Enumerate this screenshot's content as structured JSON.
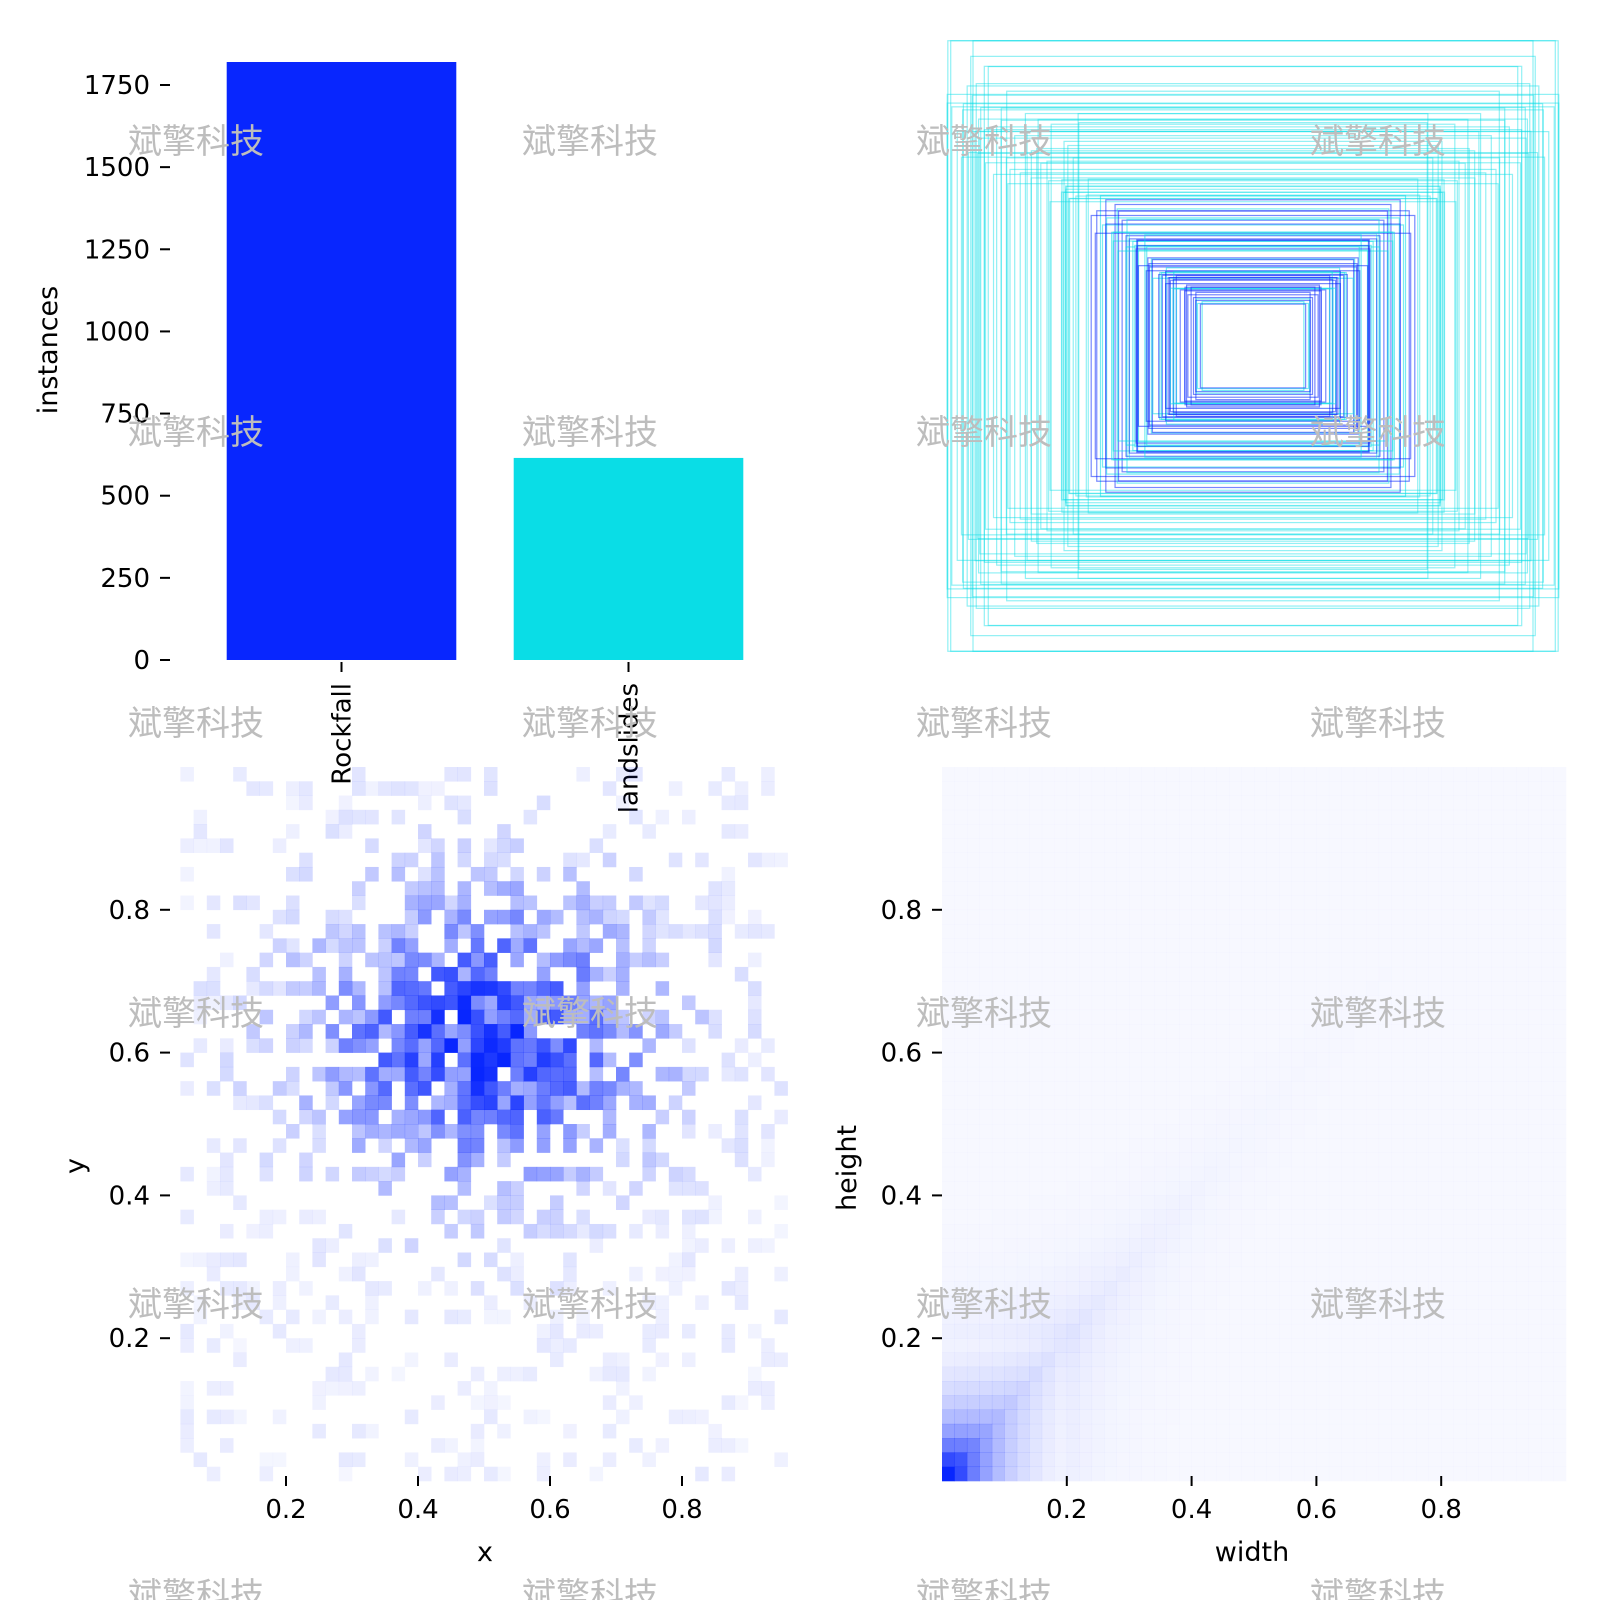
{
  "watermark": "斌擎科技",
  "chart_data": [
    {
      "type": "bar",
      "ylabel": "instances",
      "categories": [
        "Rockfall",
        "landslides"
      ],
      "values": [
        1820,
        615
      ],
      "colors": [
        "#0826fe",
        "#0adde6"
      ],
      "ylim": [
        0,
        1850
      ],
      "yticks": [
        0,
        250,
        500,
        750,
        1000,
        1250,
        1500,
        1750
      ],
      "grid": false
    },
    {
      "type": "scatter",
      "description_kind": "overlaid centered bounding boxes",
      "boxes_wh": [
        [
          0.98,
          0.98
        ],
        [
          0.9,
          0.85
        ],
        [
          0.78,
          0.82
        ],
        [
          0.7,
          0.72
        ],
        [
          0.6,
          0.68
        ],
        [
          0.94,
          0.64
        ],
        [
          0.84,
          0.6
        ],
        [
          0.72,
          0.54
        ],
        [
          0.62,
          0.5
        ],
        [
          0.56,
          0.46
        ],
        [
          0.5,
          0.4
        ],
        [
          0.44,
          0.37
        ],
        [
          0.4,
          0.32
        ],
        [
          0.36,
          0.3
        ],
        [
          0.32,
          0.26
        ],
        [
          0.28,
          0.22
        ],
        [
          0.25,
          0.2
        ],
        [
          0.22,
          0.18
        ],
        [
          0.2,
          0.16
        ],
        [
          0.18,
          0.14
        ],
        [
          0.96,
          0.78
        ],
        [
          0.88,
          0.7
        ],
        [
          0.8,
          0.66
        ],
        [
          0.66,
          0.6
        ],
        [
          0.58,
          0.55
        ],
        [
          0.52,
          0.48
        ],
        [
          0.46,
          0.42
        ],
        [
          0.42,
          0.36
        ],
        [
          0.38,
          0.34
        ],
        [
          0.34,
          0.28
        ],
        [
          0.3,
          0.24
        ],
        [
          0.26,
          0.22
        ]
      ],
      "colors": [
        "#0826fe",
        "#0adde6"
      ],
      "grid": false
    },
    {
      "type": "heatmap",
      "xlabel": "x",
      "ylabel": "y",
      "xlim": [
        0.0,
        1.0
      ],
      "ylim": [
        0.0,
        1.0
      ],
      "xticks": [
        0.2,
        0.4,
        0.6,
        0.8
      ],
      "yticks": [
        0.2,
        0.4,
        0.6,
        0.8
      ],
      "center": [
        0.5,
        0.62
      ],
      "spread": [
        0.18,
        0.14
      ],
      "color": "#0826fe",
      "grid": false
    },
    {
      "type": "heatmap",
      "xlabel": "width",
      "ylabel": "height",
      "xlim": [
        0.0,
        1.0
      ],
      "ylim": [
        0.0,
        1.0
      ],
      "xticks": [
        0.2,
        0.4,
        0.6,
        0.8
      ],
      "yticks": [
        0.2,
        0.4,
        0.6,
        0.8
      ],
      "peak": [
        0.03,
        0.03
      ],
      "color": "#0826fe",
      "grid": false
    }
  ]
}
